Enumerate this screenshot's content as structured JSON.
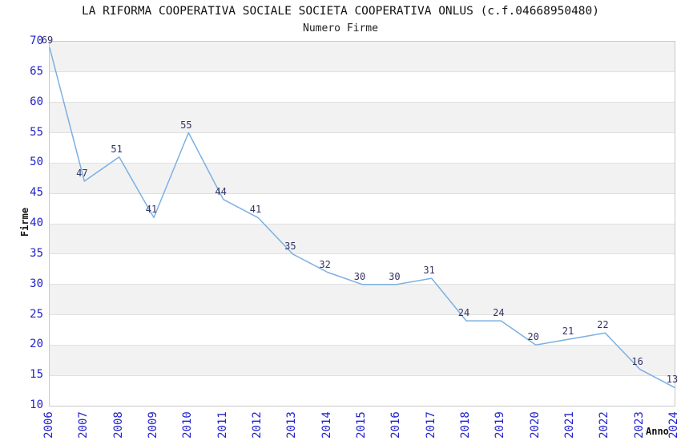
{
  "header": {
    "title": "LA RIFORMA COOPERATIVA SOCIALE SOCIETA COOPERATIVA ONLUS (c.f.04668950480)",
    "subtitle": "Numero Firme"
  },
  "chart_data": {
    "type": "line",
    "title": "LA RIFORMA COOPERATIVA SOCIALE SOCIETA COOPERATIVA ONLUS (c.f.04668950480)",
    "subtitle": "Numero Firme",
    "xlabel": "Anno",
    "ylabel": "Firme",
    "x": [
      2006,
      2007,
      2008,
      2009,
      2010,
      2011,
      2012,
      2013,
      2014,
      2015,
      2016,
      2017,
      2018,
      2019,
      2020,
      2021,
      2022,
      2023,
      2024
    ],
    "series": [
      {
        "name": "Numero Firme",
        "values": [
          69,
          47,
          51,
          41,
          55,
          44,
          41,
          35,
          32,
          30,
          30,
          31,
          24,
          24,
          20,
          21,
          22,
          16,
          13
        ]
      }
    ],
    "point_labels_visible": true,
    "ylim": [
      10,
      70
    ],
    "ytick_step": 5,
    "grid": "horizontal",
    "banded_background": true,
    "legend_position": "none",
    "colors": {
      "line": "#7cb0e2",
      "tick_labels": "#2222cc",
      "point_labels": "#333366",
      "band_fill": "#f2f2f2",
      "gridline": "#e0e0e0",
      "plot_border": "#c9c9c9",
      "title_text": "#111111"
    }
  }
}
